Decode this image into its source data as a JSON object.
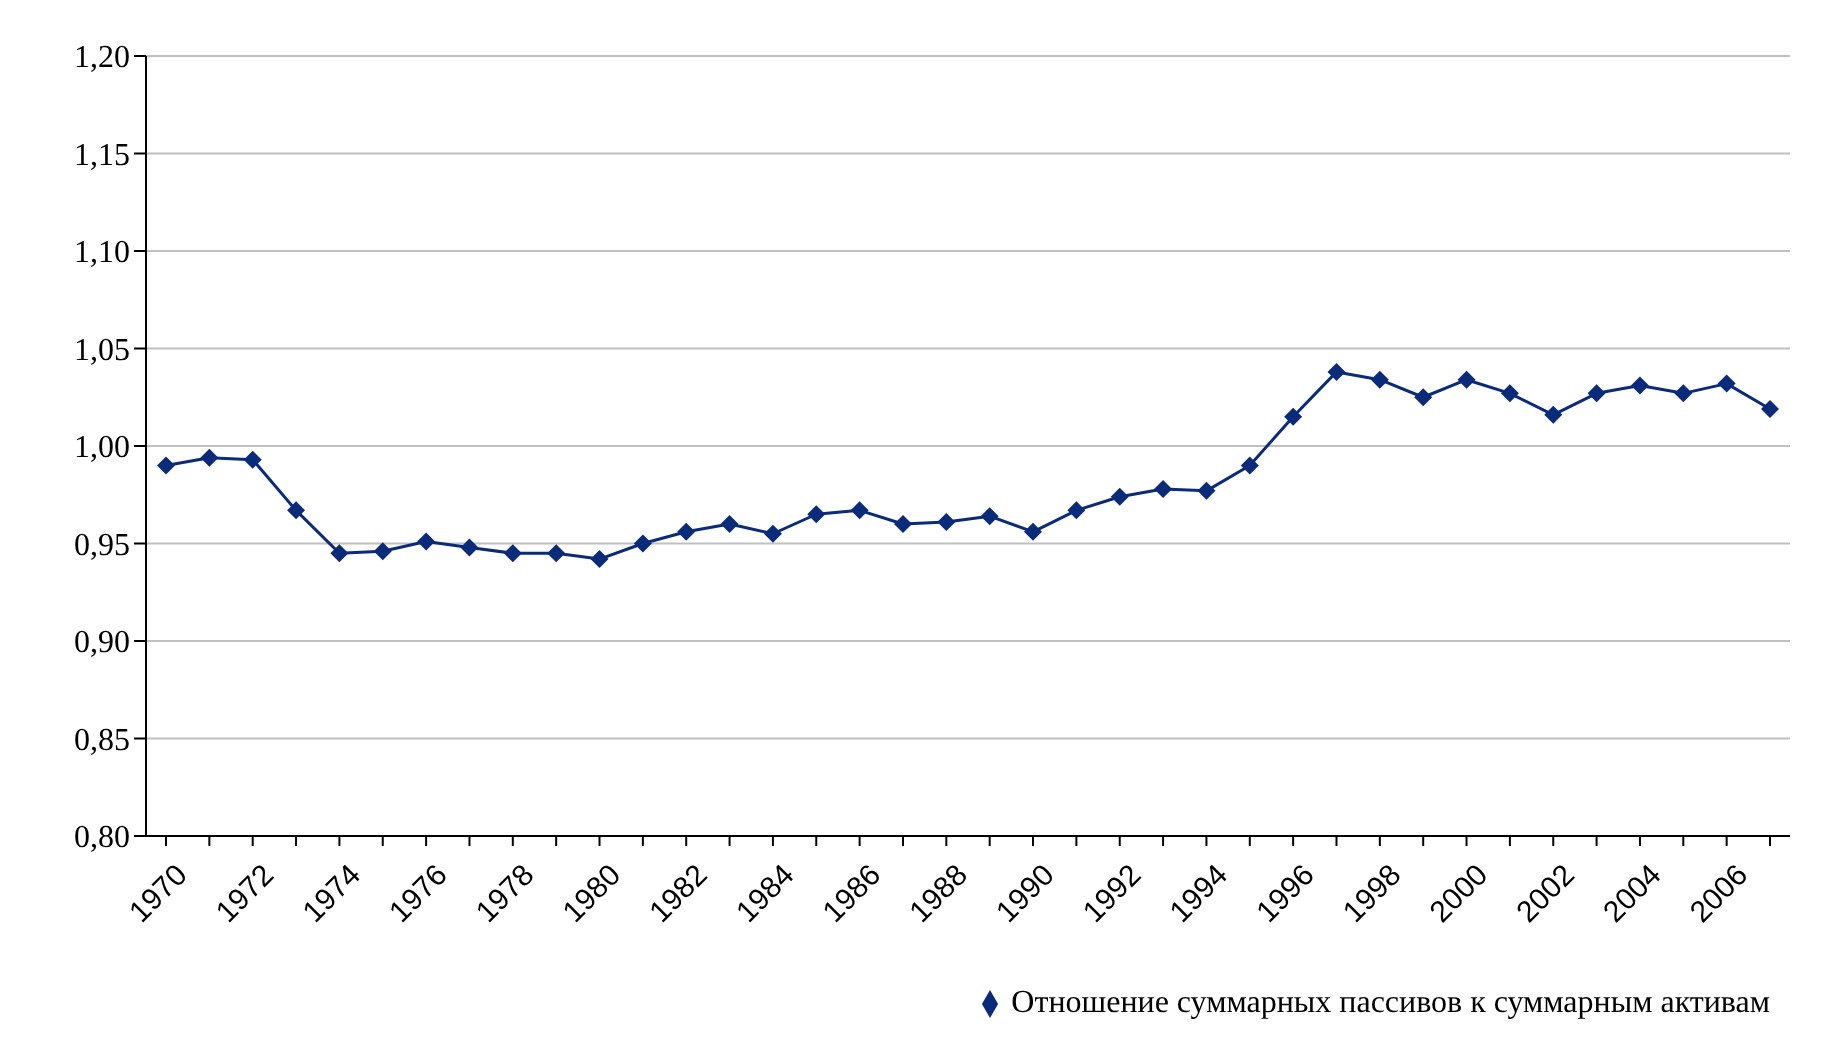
{
  "chart_data": {
    "type": "line",
    "categories": [
      "1970",
      null,
      "1972",
      null,
      "1974",
      null,
      "1976",
      null,
      "1978",
      null,
      "1980",
      null,
      "1982",
      null,
      "1984",
      null,
      "1986",
      null,
      "1988",
      null,
      "1990",
      null,
      "1992",
      null,
      "1994",
      null,
      "1996",
      null,
      "1998",
      null,
      "2000",
      null,
      "2002",
      null,
      "2004",
      null,
      "2006",
      null
    ],
    "series": [
      {
        "name": "Отношение суммарных пассивов к суммарным активам",
        "color": "#0a2a7a",
        "values": [
          0.99,
          0.994,
          0.993,
          0.967,
          0.945,
          0.946,
          0.951,
          0.948,
          0.945,
          0.945,
          0.942,
          0.95,
          0.956,
          0.96,
          0.955,
          0.965,
          0.967,
          0.96,
          0.961,
          0.964,
          0.956,
          0.967,
          0.974,
          0.978,
          0.977,
          0.99,
          1.015,
          1.038,
          1.034,
          1.025,
          1.034,
          1.027,
          1.016,
          1.027,
          1.031,
          1.027,
          1.032,
          1.019
        ]
      }
    ],
    "ylim": [
      0.8,
      1.2
    ],
    "yticks": [
      {
        "value": 0.8,
        "label": "0,80"
      },
      {
        "value": 0.85,
        "label": "0,85"
      },
      {
        "value": 0.9,
        "label": "0,90"
      },
      {
        "value": 0.95,
        "label": "0,95"
      },
      {
        "value": 1.0,
        "label": "1,00"
      },
      {
        "value": 1.05,
        "label": "1,05"
      },
      {
        "value": 1.1,
        "label": "1,10"
      },
      {
        "value": 1.15,
        "label": "1,15"
      },
      {
        "value": 1.2,
        "label": "1,20"
      }
    ],
    "grid": "y",
    "legend": "bottom right",
    "marker": "diamond",
    "line_style": "solid"
  }
}
